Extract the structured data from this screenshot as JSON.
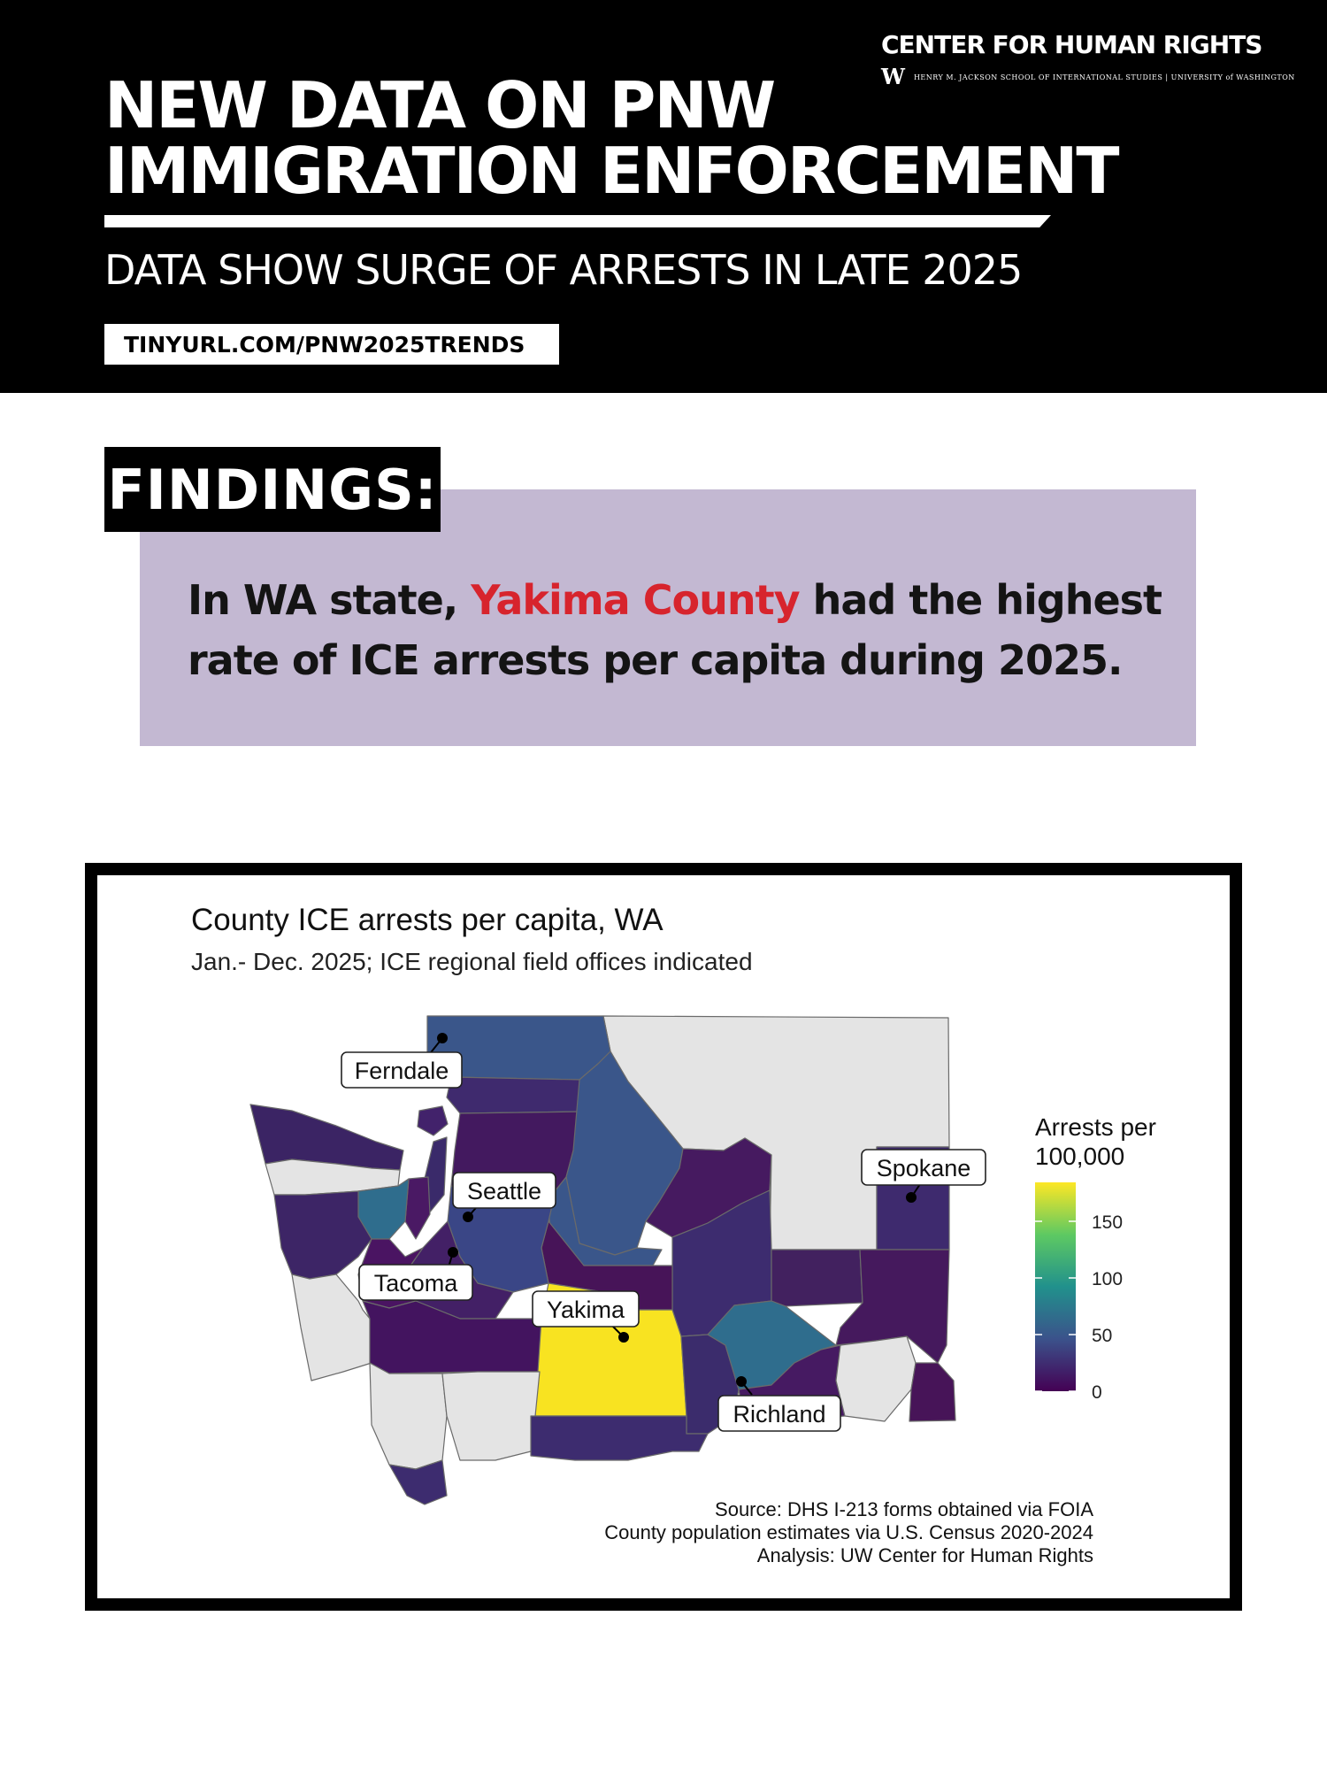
{
  "header": {
    "org_name": "CENTER FOR HUMAN RIGHTS",
    "org_logo": "W",
    "org_subline": "HENRY M. JACKSON SCHOOL OF INTERNATIONAL STUDIES | UNIVERSITY of WASHINGTON",
    "title_line1": "NEW DATA ON PNW",
    "title_line2": "IMMIGRATION ENFORCEMENT",
    "subtitle": "DATA SHOW SURGE OF ARRESTS IN LATE 2025",
    "url": "TINYURL.COM/PNW2025TRENDS"
  },
  "findings": {
    "tag": "FINDINGS:",
    "text_before": "In WA state, ",
    "text_highlight": "Yakima County",
    "text_after": " had the highest rate of ICE arrests per capita during 2025.",
    "highlight_color": "#d7242d",
    "box_color": "#c3b8d2"
  },
  "map": {
    "title": "County ICE arrests per capita, WA",
    "subtitle": "Jan.- Dec. 2025; ICE regional field offices indicated",
    "no_data_color": "#e4e4e4",
    "field_offices": [
      "Ferndale",
      "Seattle",
      "Tacoma",
      "Yakima",
      "Spokane",
      "Richland"
    ],
    "legend": {
      "title_line1": "Arrests per",
      "title_line2": "100,000",
      "colorscale": "viridis",
      "range": [
        0,
        185
      ],
      "ticks": [
        "150",
        "100",
        "50",
        "0"
      ]
    },
    "source_lines": [
      "Source: DHS I-213 forms obtained via FOIA",
      "County population estimates via U.S. Census 2020-2024",
      "Analysis: UW Center for Human Rights"
    ]
  }
}
